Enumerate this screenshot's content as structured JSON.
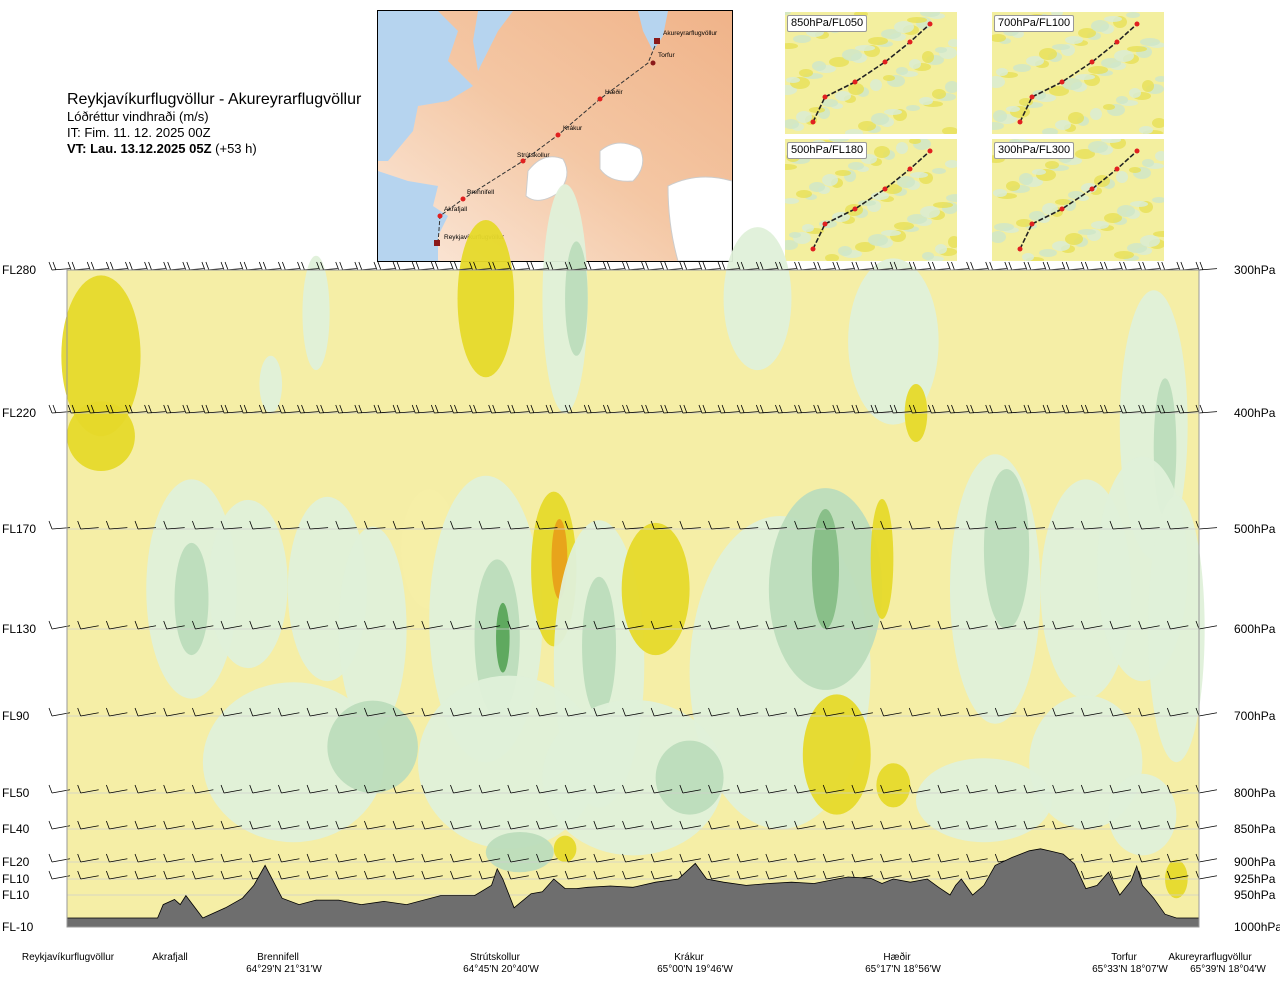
{
  "header": {
    "title": "Reykjavíkurflugvöllur - Akureyrarflugvöllur",
    "subtitle": "Lóðréttur vindhraði (m/s)",
    "issue_time": "IT: Fim. 11. 12. 2025 00Z",
    "valid_time_label": "VT: Lau. 13.12.2025 05Z",
    "valid_time_offset": "(+53 h)"
  },
  "route_map": {
    "points": [
      {
        "name": "Akureyrarflugvöllur"
      },
      {
        "name": "Torfur"
      },
      {
        "name": "Hæðir"
      },
      {
        "name": "Krákur"
      },
      {
        "name": "Strútskollur"
      },
      {
        "name": "Brennifell"
      },
      {
        "name": "Akrafjall"
      },
      {
        "name": "Reykjavíkurflugvöllur"
      }
    ]
  },
  "mini_maps": [
    {
      "label": "850hPa/FL050"
    },
    {
      "label": "700hPa/FL100"
    },
    {
      "label": "500hPa/FL180"
    },
    {
      "label": "300hPa/FL300"
    }
  ],
  "colors": {
    "strong_down": "#e8a11a",
    "moderate_down": "#e6d92a",
    "weak_down": "#f5eea6",
    "neutral": "#fcfbe3",
    "weak_up": "#dff0d9",
    "moderate_up": "#bcdcbc",
    "strong_up": "#86bd86",
    "very_strong_up": "#5aa55a",
    "terrain": "#6e6e6e"
  },
  "chart_data": {
    "type": "cross-section",
    "title": "Reykjavíkurflugvöllur - Akureyrarflugvöllur",
    "variable": "Lóðréttur vindhraði (m/s)",
    "x_stations": [
      {
        "name": "Reykjavíkurflugvöllur",
        "coord": "",
        "dist": 0.0
      },
      {
        "name": "Akrafjall",
        "coord": "",
        "dist": 0.09
      },
      {
        "name": "Brennifell",
        "coord": "64°29'N 21°31'W",
        "dist": 0.17
      },
      {
        "name": "Strútskollur",
        "coord": "64°45'N 20°40'W",
        "dist": 0.38
      },
      {
        "name": "Krákur",
        "coord": "65°00'N 19°46'W",
        "dist": 0.55
      },
      {
        "name": "Hæðir",
        "coord": "65°17'N 18°56'W",
        "dist": 0.74
      },
      {
        "name": "Torfur",
        "coord": "65°33'N 18°07'W",
        "dist": 0.95
      },
      {
        "name": "Akureyrarflugvöllur",
        "coord": "65°39'N 18°04'W",
        "dist": 1.0
      }
    ],
    "pressure_levels": [
      {
        "fl": "FL280",
        "hpa": "300hPa",
        "p": 300
      },
      {
        "fl": "FL220",
        "hpa": "400hPa",
        "p": 400
      },
      {
        "fl": "FL170",
        "hpa": "500hPa",
        "p": 500
      },
      {
        "fl": "FL130",
        "hpa": "600hPa",
        "p": 600
      },
      {
        "fl": "FL90",
        "hpa": "700hPa",
        "p": 700
      },
      {
        "fl": "FL50",
        "hpa": "800hPa",
        "p": 800
      },
      {
        "fl": "FL40",
        "hpa": "850hPa",
        "p": 850
      },
      {
        "fl": "FL20",
        "hpa": "900hPa",
        "p": 900
      },
      {
        "fl": "FL10",
        "hpa": "925hPa",
        "p": 925
      },
      {
        "fl": "FL10",
        "hpa": "950hPa",
        "p": 950
      },
      {
        "fl": "FL-10",
        "hpa": "1000hPa",
        "p": 1000
      }
    ],
    "y_range_hpa": [
      300,
      1000
    ],
    "terrain_profile_hpa": [
      [
        0.0,
        986
      ],
      [
        0.08,
        986
      ],
      [
        0.085,
        965
      ],
      [
        0.095,
        957
      ],
      [
        0.1,
        965
      ],
      [
        0.105,
        951
      ],
      [
        0.12,
        986
      ],
      [
        0.14,
        970
      ],
      [
        0.155,
        955
      ],
      [
        0.165,
        935
      ],
      [
        0.175,
        905
      ],
      [
        0.19,
        955
      ],
      [
        0.205,
        965
      ],
      [
        0.22,
        958
      ],
      [
        0.24,
        958
      ],
      [
        0.26,
        965
      ],
      [
        0.28,
        960
      ],
      [
        0.3,
        965
      ],
      [
        0.33,
        951
      ],
      [
        0.36,
        951
      ],
      [
        0.375,
        935
      ],
      [
        0.38,
        910
      ],
      [
        0.385,
        925
      ],
      [
        0.395,
        970
      ],
      [
        0.41,
        948
      ],
      [
        0.42,
        945
      ],
      [
        0.43,
        925
      ],
      [
        0.44,
        940
      ],
      [
        0.45,
        940
      ],
      [
        0.46,
        938
      ],
      [
        0.48,
        936
      ],
      [
        0.5,
        938
      ],
      [
        0.52,
        930
      ],
      [
        0.54,
        925
      ],
      [
        0.555,
        902
      ],
      [
        0.565,
        925
      ],
      [
        0.58,
        930
      ],
      [
        0.6,
        935
      ],
      [
        0.62,
        932
      ],
      [
        0.64,
        930
      ],
      [
        0.66,
        932
      ],
      [
        0.68,
        925
      ],
      [
        0.69,
        922
      ],
      [
        0.71,
        924
      ],
      [
        0.72,
        932
      ],
      [
        0.73,
        925
      ],
      [
        0.745,
        930
      ],
      [
        0.76,
        925
      ],
      [
        0.77,
        938
      ],
      [
        0.78,
        950
      ],
      [
        0.785,
        935
      ],
      [
        0.79,
        925
      ],
      [
        0.8,
        950
      ],
      [
        0.81,
        935
      ],
      [
        0.82,
        905
      ],
      [
        0.835,
        893
      ],
      [
        0.85,
        883
      ],
      [
        0.86,
        880
      ],
      [
        0.87,
        884
      ],
      [
        0.88,
        888
      ],
      [
        0.89,
        903
      ],
      [
        0.9,
        940
      ],
      [
        0.91,
        935
      ],
      [
        0.92,
        915
      ],
      [
        0.93,
        950
      ],
      [
        0.94,
        928
      ],
      [
        0.945,
        906
      ],
      [
        0.95,
        935
      ],
      [
        0.96,
        955
      ],
      [
        0.97,
        980
      ],
      [
        0.98,
        986
      ],
      [
        1.0,
        986
      ]
    ]
  }
}
